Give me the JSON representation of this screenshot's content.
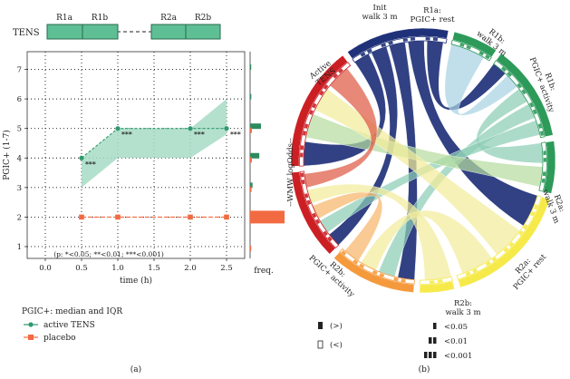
{
  "colors": {
    "active": "#2e9a6e",
    "active_band": "#a7dcc4",
    "placebo": "#f26a42",
    "bar_green": "#2e8b5e",
    "bar_orange": "#f26a42",
    "seg_green": "#5fbf94",
    "navy": "#1f3178",
    "ring_green": "#2d9a5a",
    "ring_yellow": "#f6ea4a",
    "ring_orange": "#f59a3c",
    "ring_red": "#cc1f24",
    "chord_light_yellow": "#f2ec9a",
    "chord_light_green": "#b5dca0",
    "chord_teal": "#8ccdb6",
    "chord_light_blue": "#a9d3e3",
    "chord_orange": "#f7b56a",
    "chord_red": "#de5a44"
  },
  "panel_a": {
    "caption": "(a)",
    "tens_label": "TENS",
    "segments": [
      "R1a",
      "R1b",
      "R2a",
      "R2b"
    ],
    "annotation": "(p: *<0.05; **<0.01; ***<0.001)",
    "freq_label": "freq.",
    "legend_title": "PGIC+: median and IQR",
    "legend_active": "active TENS",
    "legend_placebo": "placebo"
  },
  "panel_b": {
    "caption": "(b)",
    "side_label": "--WMW logOdds--",
    "sectors": [
      {
        "name": "active-tens",
        "label_lines": [
          "Active",
          "TENS"
        ]
      },
      {
        "name": "init-walk",
        "label_lines": [
          "Init",
          "walk 3 m"
        ]
      },
      {
        "name": "r1a-rest",
        "label_lines": [
          "R1a:",
          "PGIC+ rest"
        ]
      },
      {
        "name": "r1b-walk",
        "label_lines": [
          "R1b:",
          "walk 3 m"
        ]
      },
      {
        "name": "r1b-activity",
        "label_lines": [
          "R1b:",
          "PGIC+ activity"
        ]
      },
      {
        "name": "r2a-walk",
        "label_lines": [
          "R2a:",
          "walk 3 m"
        ]
      },
      {
        "name": "r2a-rest",
        "label_lines": [
          "R2a:",
          "PGIC+ rest"
        ]
      },
      {
        "name": "r2b-walk",
        "label_lines": [
          "R2b:",
          "walk 3 m"
        ]
      },
      {
        "name": "r2b-activity",
        "label_lines": [
          "R2b:",
          "PGIC+ activity"
        ]
      }
    ],
    "legend": {
      "greater": "(>)",
      "less": "(<)",
      "p05": "<0.05",
      "p01": "<0.01",
      "p001": "<0.001"
    }
  },
  "chart_data": [
    {
      "type": "line",
      "title": "",
      "xlabel": "time (h)",
      "ylabel": "PGIC+ (1-7)",
      "xlim": [
        -0.25,
        2.75
      ],
      "ylim": [
        0.6,
        7.6
      ],
      "x_ticks": [
        "0.0",
        "0.5",
        "1.0",
        "1.5",
        "2.0",
        "2.5"
      ],
      "y_ticks": [
        "1",
        "2",
        "3",
        "4",
        "5",
        "6",
        "7"
      ],
      "series": [
        {
          "name": "active TENS",
          "x": [
            0.5,
            1.0,
            2.0,
            2.5
          ],
          "median": [
            4,
            5,
            5,
            5
          ],
          "iqr_low": [
            3,
            4,
            4,
            4.8
          ],
          "iqr_high": [
            4,
            5,
            5,
            6
          ],
          "significance": [
            "***",
            "***",
            "***",
            "***"
          ]
        },
        {
          "name": "placebo",
          "x": [
            0.5,
            1.0,
            2.0,
            2.5
          ],
          "median": [
            2,
            2,
            2,
            2
          ],
          "iqr_low": [
            2,
            2,
            2,
            2
          ],
          "iqr_high": [
            2,
            2,
            2,
            2
          ]
        }
      ],
      "freq_bars": [
        {
          "y": 7,
          "active": 0.02,
          "placebo": 0.0
        },
        {
          "y": 6,
          "active": 0.05,
          "placebo": 0.0
        },
        {
          "y": 5,
          "active": 0.45,
          "placebo": 0.05
        },
        {
          "y": 4,
          "active": 0.38,
          "placebo": 0.05
        },
        {
          "y": 3,
          "active": 0.1,
          "placebo": 0.04
        },
        {
          "y": 2,
          "active": 0.03,
          "placebo": 1.0
        },
        {
          "y": 1,
          "active": 0.0,
          "placebo": 0.02
        }
      ]
    },
    {
      "type": "chord",
      "sectors": [
        "Active TENS",
        "Init walk 3 m",
        "R1a: PGIC+ rest",
        "R1b: walk 3 m",
        "R1b: PGIC+ activity",
        "R2a: walk 3 m",
        "R2a: PGIC+ rest",
        "R2b: walk 3 m",
        "R2b: PGIC+ activity"
      ],
      "sector_sizes": [
        30,
        13,
        28,
        15,
        37,
        10,
        25,
        26,
        36
      ],
      "links": [
        {
          "from": "Active TENS",
          "to": "R2b: PGIC+ activity"
        },
        {
          "from": "Active TENS",
          "to": "R2b: walk 3 m"
        },
        {
          "from": "Active TENS",
          "to": "R2a: PGIC+ rest"
        },
        {
          "from": "Active TENS",
          "to": "R1b: PGIC+ activity"
        },
        {
          "from": "Active TENS",
          "to": "R1a: PGIC+ rest"
        },
        {
          "from": "Init walk 3 m",
          "to": "R1a: PGIC+ rest"
        },
        {
          "from": "R1a: PGIC+ rest",
          "to": "R1b: walk 3 m"
        },
        {
          "from": "R1a: PGIC+ rest",
          "to": "R2a: PGIC+ rest"
        },
        {
          "from": "R1a: PGIC+ rest",
          "to": "R2b: walk 3 m"
        },
        {
          "from": "R1b: walk 3 m",
          "to": "R2b: PGIC+ activity"
        },
        {
          "from": "R1b: PGIC+ activity",
          "to": "R2b: PGIC+ activity"
        },
        {
          "from": "R1b: PGIC+ activity",
          "to": "R2a: PGIC+ rest"
        },
        {
          "from": "R2a: PGIC+ rest",
          "to": "R2b: walk 3 m"
        },
        {
          "from": "R2a: walk 3 m",
          "to": "R2b: walk 3 m"
        },
        {
          "from": "R2b: walk 3 m",
          "to": "R2b: PGIC+ activity"
        }
      ]
    }
  ]
}
